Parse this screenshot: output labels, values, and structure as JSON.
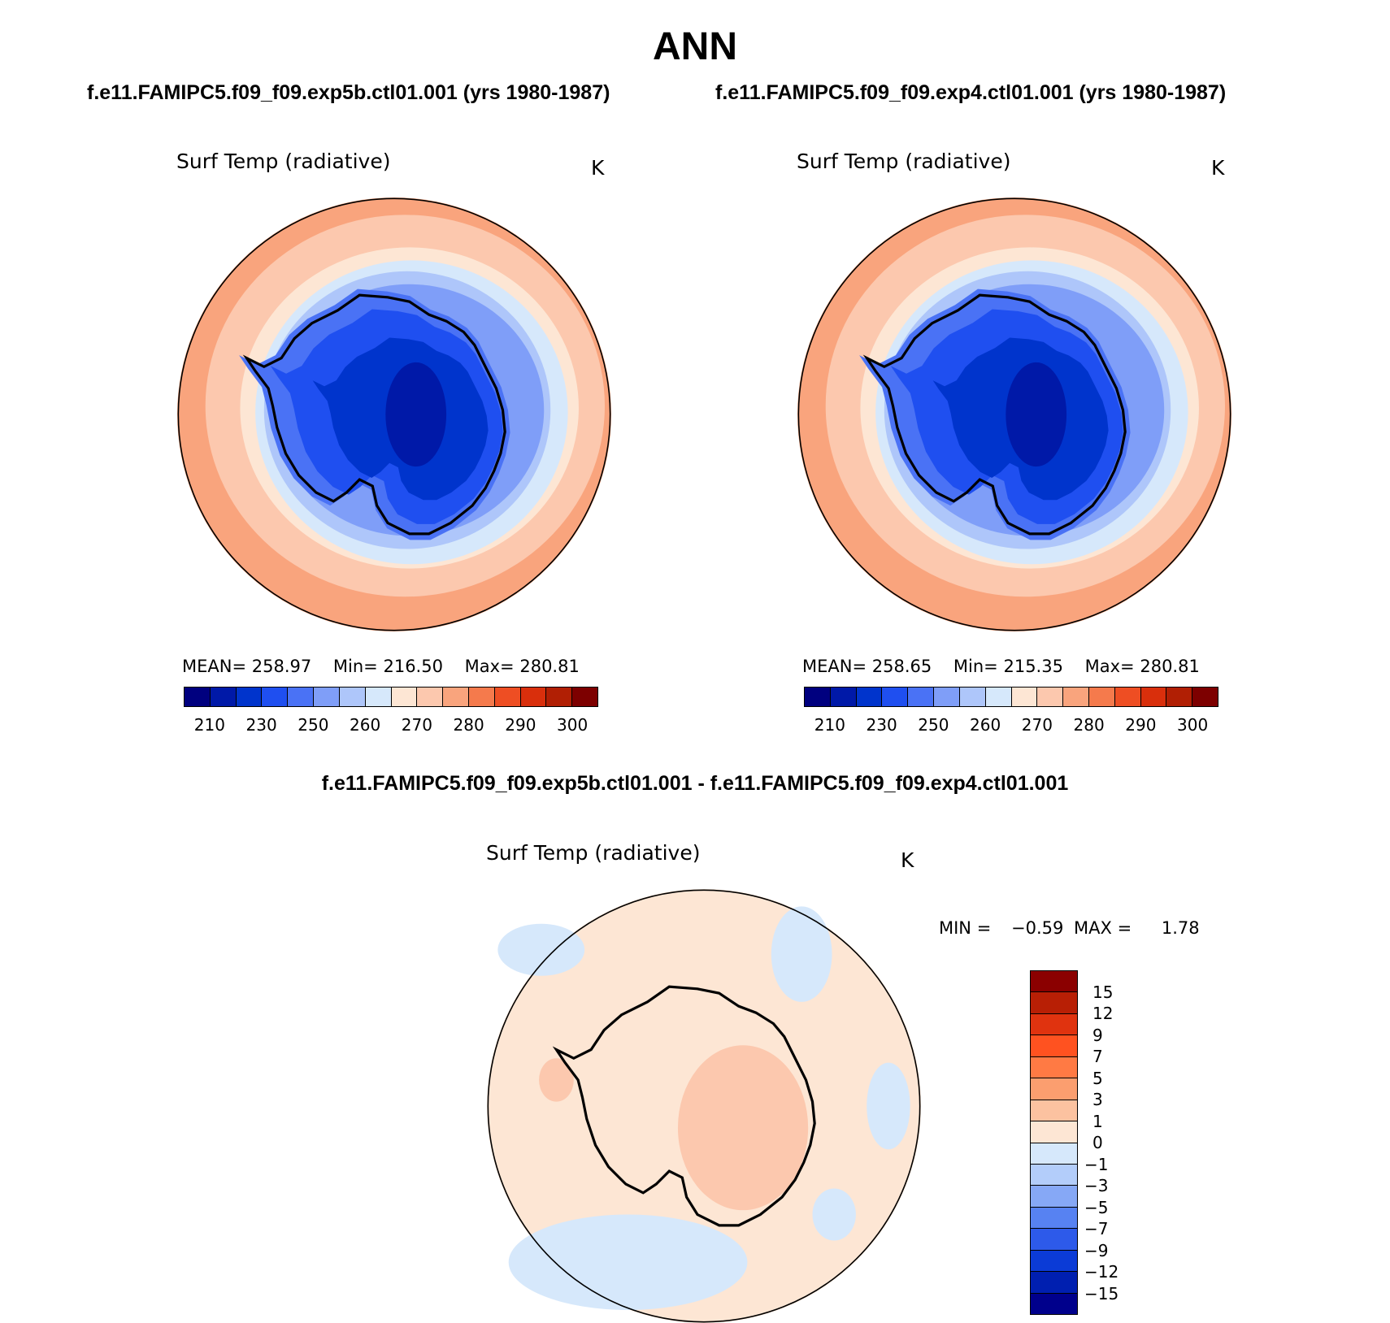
{
  "title": "ANN",
  "panels": [
    {
      "case_title": "f.e11.FAMIPC5.f09_f09.exp5b.ctl01.001 (yrs 1980-1987)",
      "variable": "Surf Temp (radiative)",
      "units": "K",
      "stats": {
        "mean_label": "MEAN=",
        "mean": "258.97",
        "min_label": "Min=",
        "min": "216.50",
        "max_label": "Max=",
        "max": "280.81"
      }
    },
    {
      "case_title": "f.e11.FAMIPC5.f09_f09.exp4.ctl01.001 (yrs 1980-1987)",
      "variable": "Surf Temp (radiative)",
      "units": "K",
      "stats": {
        "mean_label": "MEAN=",
        "mean": "258.65",
        "min_label": "Min=",
        "min": "215.35",
        "max_label": "Max=",
        "max": "280.81"
      }
    }
  ],
  "colorbar_abs": {
    "colors": [
      "#00007f",
      "#0019a8",
      "#0034cc",
      "#1f4ff0",
      "#4a72f5",
      "#7f9ef8",
      "#aec6fa",
      "#d6e8fb",
      "#fde6d4",
      "#fcc8ae",
      "#f9a47d",
      "#f57a4c",
      "#ee4e23",
      "#d92f0c",
      "#b11f04",
      "#7d0000"
    ],
    "labels": [
      "210",
      "230",
      "250",
      "260",
      "270",
      "280",
      "290",
      "300"
    ]
  },
  "difference": {
    "title": "f.e11.FAMIPC5.f09_f09.exp5b.ctl01.001 - f.e11.FAMIPC5.f09_f09.exp4.ctl01.001",
    "variable": "Surf Temp (radiative)",
    "units": "K",
    "stats": {
      "min_label": "MIN =",
      "min": "−0.59",
      "max_label": "MAX =",
      "max": "1.78"
    },
    "colorbar": {
      "colors_top_to_bottom": [
        "#8b0000",
        "#b81f05",
        "#e0330f",
        "#ff5220",
        "#ff7a44",
        "#fb9e6f",
        "#fcc2a0",
        "#fde6d4",
        "#d6e8fb",
        "#b3cdfa",
        "#86a8f6",
        "#5782f2",
        "#2d5aea",
        "#0b3bd6",
        "#001fb0",
        "#00008c"
      ],
      "labels": [
        "15",
        "12",
        "9",
        "7",
        "5",
        "3",
        "1",
        "0",
        "−1",
        "−3",
        "−5",
        "−7",
        "−9",
        "−12",
        "−15"
      ]
    }
  },
  "map_colors": {
    "outer_warm": "#f9a47d",
    "mid_warm": "#fcc8ae",
    "cool_ring": "#fde6d4",
    "ice_edge": "#d6e8fb",
    "sea_ice": "#aec6fa",
    "coast_cold": "#7f9ef8",
    "interior_1": "#4a72f5",
    "interior_2": "#1f4ff0",
    "interior_3": "#0034cc",
    "interior_4": "#0019a8",
    "diff_base": "#fde6d4",
    "diff_pos": "#fcc8ae",
    "diff_neg": "#d6e8fb"
  }
}
